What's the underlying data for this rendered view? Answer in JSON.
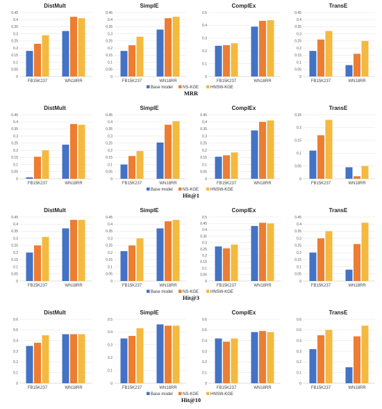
{
  "colors": {
    "base": "#4472c4",
    "ns": "#ed7d31",
    "hnsw": "#f4b93f"
  },
  "rows": [
    {
      "metric": "MRR",
      "legend": [
        "Base model",
        "NS-KGE",
        "HNSW-KGE"
      ],
      "charts": [
        {
          "title": "DistMult",
          "ymax": 0.45,
          "step": 0.05,
          "categories": [
            "FB15K237",
            "WN18RR"
          ],
          "series": [
            {
              "name": "Base model",
              "values": [
                0.18,
                0.32
              ]
            },
            {
              "name": "NS-KGE",
              "values": [
                0.23,
                0.42
              ]
            },
            {
              "name": "HNSW-KGE",
              "values": [
                0.29,
                0.41
              ]
            }
          ]
        },
        {
          "title": "SimplE",
          "ymax": 0.45,
          "step": 0.05,
          "categories": [
            "FB15K237",
            "WN18RR"
          ],
          "series": [
            {
              "name": "Base model",
              "values": [
                0.18,
                0.33
              ]
            },
            {
              "name": "NS-KGE",
              "values": [
                0.22,
                0.41
              ]
            },
            {
              "name": "HNSW-KGE",
              "values": [
                0.28,
                0.42
              ]
            }
          ]
        },
        {
          "title": "ComplEx",
          "ymax": 0.5,
          "step": 0.1,
          "categories": [
            "FB15K237",
            "WN18RR"
          ],
          "series": [
            {
              "name": "Base model",
              "values": [
                0.24,
                0.39
              ]
            },
            {
              "name": "NS-KGE",
              "values": [
                0.245,
                0.435
              ]
            },
            {
              "name": "HNSW-KGE",
              "values": [
                0.26,
                0.44
              ]
            }
          ]
        },
        {
          "title": "TransE",
          "ymax": 0.45,
          "step": 0.05,
          "categories": [
            "FB15K237",
            "WN18RR"
          ],
          "series": [
            {
              "name": "Base model",
              "values": [
                0.18,
                0.08
              ]
            },
            {
              "name": "NS-KGE",
              "values": [
                0.26,
                0.16
              ]
            },
            {
              "name": "HNSW-KGE",
              "values": [
                0.32,
                0.25
              ]
            }
          ]
        }
      ]
    },
    {
      "metric": "Hit@1",
      "legend": [
        "Base model",
        "NS-KGE",
        "HNSW-KGE"
      ],
      "charts": [
        {
          "title": "DistMult",
          "ymax": 0.45,
          "step": 0.05,
          "categories": [
            "FB15K237",
            "WN18RR"
          ],
          "series": [
            {
              "name": "Base model",
              "values": [
                0.01,
                0.24
              ]
            },
            {
              "name": "NS-KGE",
              "values": [
                0.155,
                0.385
              ]
            },
            {
              "name": "HNSW-KGE",
              "values": [
                0.2,
                0.38
              ]
            }
          ]
        },
        {
          "title": "SimplE",
          "ymax": 0.45,
          "step": 0.05,
          "categories": [
            "FB15K237",
            "WN18RR"
          ],
          "series": [
            {
              "name": "Base model",
              "values": [
                0.1,
                0.255
              ]
            },
            {
              "name": "NS-KGE",
              "values": [
                0.16,
                0.38
              ]
            },
            {
              "name": "HNSW-KGE",
              "values": [
                0.195,
                0.405
              ]
            }
          ]
        },
        {
          "title": "ComplEx",
          "ymax": 0.45,
          "step": 0.05,
          "categories": [
            "FB15K237",
            "WN18RR"
          ],
          "series": [
            {
              "name": "Base model",
              "values": [
                0.155,
                0.34
              ]
            },
            {
              "name": "NS-KGE",
              "values": [
                0.165,
                0.4
              ]
            },
            {
              "name": "HNSW-KGE",
              "values": [
                0.185,
                0.41
              ]
            }
          ]
        },
        {
          "title": "TransE",
          "ymax": 0.25,
          "step": 0.05,
          "categories": [
            "FB15K237",
            "WN18RR"
          ],
          "series": [
            {
              "name": "Base model",
              "values": [
                0.11,
                0.045
              ]
            },
            {
              "name": "NS-KGE",
              "values": [
                0.17,
                0.01
              ]
            },
            {
              "name": "HNSW-KGE",
              "values": [
                0.23,
                0.05
              ]
            }
          ]
        }
      ]
    },
    {
      "metric": "Hit@3",
      "legend": [
        "Base model",
        "NS-KGE",
        "HNSW-KGE"
      ],
      "charts": [
        {
          "title": "DistMult",
          "ymax": 0.45,
          "step": 0.05,
          "categories": [
            "FB15K237",
            "WN18RR"
          ],
          "series": [
            {
              "name": "Base model",
              "values": [
                0.2,
                0.37
              ]
            },
            {
              "name": "NS-KGE",
              "values": [
                0.25,
                0.43
              ]
            },
            {
              "name": "HNSW-KGE",
              "values": [
                0.31,
                0.43
              ]
            }
          ]
        },
        {
          "title": "SimplE",
          "ymax": 0.45,
          "step": 0.05,
          "categories": [
            "FB15K237",
            "WN18RR"
          ],
          "series": [
            {
              "name": "Base model",
              "values": [
                0.21,
                0.37
              ]
            },
            {
              "name": "NS-KGE",
              "values": [
                0.25,
                0.42
              ]
            },
            {
              "name": "HNSW-KGE",
              "values": [
                0.3,
                0.43
              ]
            }
          ]
        },
        {
          "title": "ComplEx",
          "ymax": 0.5,
          "step": 0.05,
          "categories": [
            "FB15K237",
            "WN18RR"
          ],
          "series": [
            {
              "name": "Base model",
              "values": [
                0.27,
                0.43
              ]
            },
            {
              "name": "NS-KGE",
              "values": [
                0.255,
                0.455
              ]
            },
            {
              "name": "HNSW-KGE",
              "values": [
                0.285,
                0.45
              ]
            }
          ]
        },
        {
          "title": "TransE",
          "ymax": 0.45,
          "step": 0.05,
          "categories": [
            "FB15K237",
            "WN18RR"
          ],
          "series": [
            {
              "name": "Base model",
              "values": [
                0.2,
                0.08
              ]
            },
            {
              "name": "NS-KGE",
              "values": [
                0.3,
                0.26
              ]
            },
            {
              "name": "HNSW-KGE",
              "values": [
                0.35,
                0.41
              ]
            }
          ]
        }
      ]
    },
    {
      "metric": "Hit@10",
      "legend": [
        "Base model",
        "NS-KGE",
        "HNSW-KGE"
      ],
      "charts": [
        {
          "title": "DistMult",
          "ymax": 0.6,
          "step": 0.1,
          "categories": [
            "FB15K237",
            "WN18RR"
          ],
          "series": [
            {
              "name": "Base model",
              "values": [
                0.35,
                0.46
              ]
            },
            {
              "name": "NS-KGE",
              "values": [
                0.38,
                0.46
              ]
            },
            {
              "name": "HNSW-KGE",
              "values": [
                0.45,
                0.46
              ]
            }
          ]
        },
        {
          "title": "SimplE",
          "ymax": 0.5,
          "step": 0.1,
          "categories": [
            "FB15K237",
            "WN18RR"
          ],
          "series": [
            {
              "name": "Base model",
              "values": [
                0.35,
                0.46
              ]
            },
            {
              "name": "NS-KGE",
              "values": [
                0.37,
                0.45
              ]
            },
            {
              "name": "HNSW-KGE",
              "values": [
                0.43,
                0.45
              ]
            }
          ]
        },
        {
          "title": "ComplEx",
          "ymax": 0.6,
          "step": 0.1,
          "categories": [
            "FB15K237",
            "WN18RR"
          ],
          "series": [
            {
              "name": "Base model",
              "values": [
                0.42,
                0.48
              ]
            },
            {
              "name": "NS-KGE",
              "values": [
                0.39,
                0.49
              ]
            },
            {
              "name": "HNSW-KGE",
              "values": [
                0.42,
                0.48
              ]
            }
          ]
        },
        {
          "title": "TransE",
          "ymax": 0.6,
          "step": 0.1,
          "categories": [
            "FB15K237",
            "WN18RR"
          ],
          "series": [
            {
              "name": "Base model",
              "values": [
                0.32,
                0.15
              ]
            },
            {
              "name": "NS-KGE",
              "values": [
                0.45,
                0.44
              ]
            },
            {
              "name": "HNSW-KGE",
              "values": [
                0.5,
                0.54
              ]
            }
          ]
        }
      ]
    }
  ],
  "chart_data": {
    "type": "bar",
    "metrics": [
      "MRR",
      "Hit@1",
      "Hit@3",
      "Hit@10"
    ],
    "models": [
      "DistMult",
      "SimplE",
      "ComplEx",
      "TransE"
    ],
    "categories": [
      "FB15K237",
      "WN18RR"
    ],
    "legend": [
      "Base model",
      "NS-KGE",
      "HNSW-KGE"
    ],
    "legend_position": "bottom-center",
    "grid": true,
    "note": "values per panel are given in rows[].charts[]"
  }
}
